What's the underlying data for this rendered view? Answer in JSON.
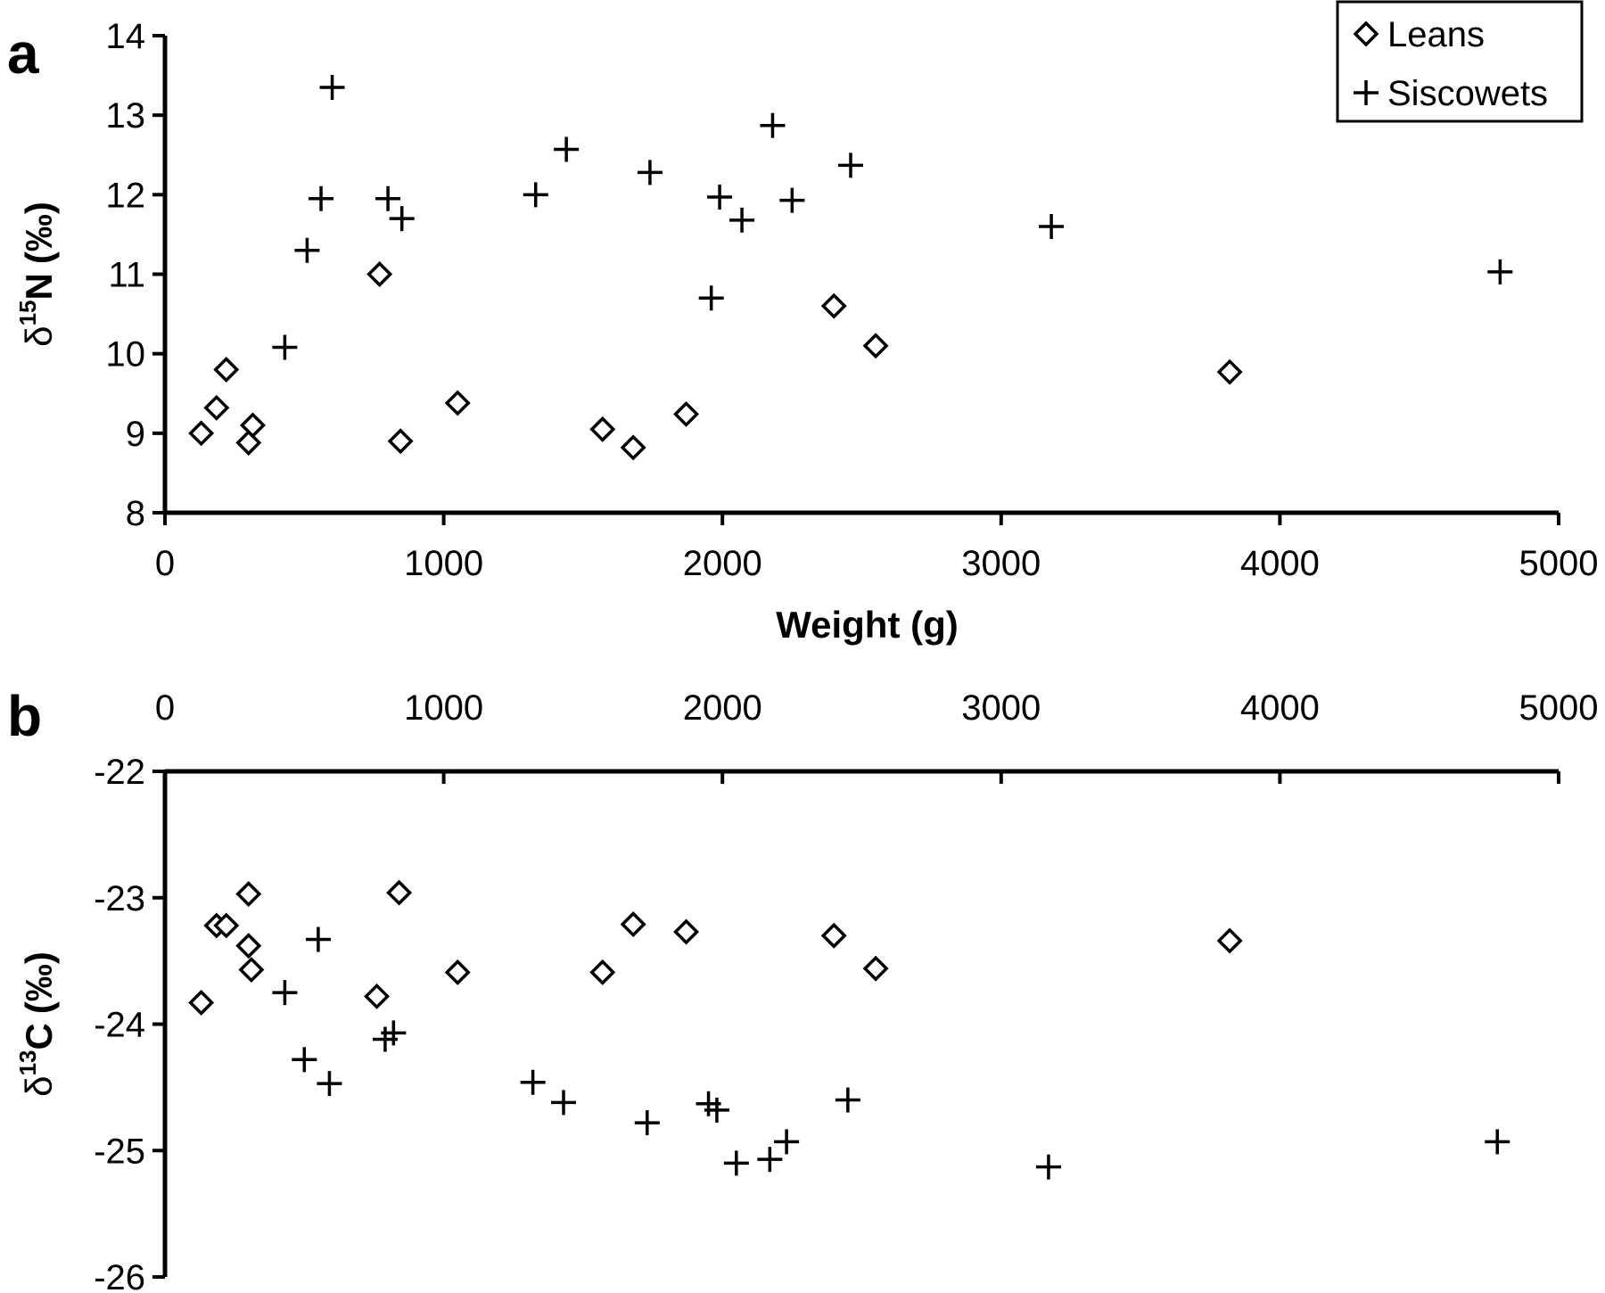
{
  "chart_data": [
    {
      "type": "scatter",
      "panel_label": "a",
      "xlabel": "Weight (g)",
      "ylabel": {
        "prefix": "δ",
        "superscript": "15",
        "element": "N",
        "unit": "(‰)"
      },
      "xlim": [
        0,
        5000
      ],
      "ylim": [
        8,
        14
      ],
      "x_ticks": [
        "0",
        "1000",
        "2000",
        "3000",
        "4000",
        "5000"
      ],
      "y_ticks": [
        "8",
        "9",
        "10",
        "11",
        "12",
        "13",
        "14"
      ],
      "x_axis_position": "bottom",
      "grid": false,
      "legend": {
        "placement": "top-right",
        "entries": [
          {
            "marker": "diamond",
            "label": "Leans"
          },
          {
            "marker": "plus",
            "label": "Siscowets"
          }
        ]
      },
      "series": [
        {
          "name": "Leans",
          "marker": "diamond",
          "points": [
            [
              130,
              9.0
            ],
            [
              185,
              9.32
            ],
            [
              220,
              9.8
            ],
            [
              300,
              8.88
            ],
            [
              315,
              9.1
            ],
            [
              770,
              11.0
            ],
            [
              845,
              8.9
            ],
            [
              1050,
              9.38
            ],
            [
              1570,
              9.05
            ],
            [
              1680,
              8.82
            ],
            [
              1870,
              9.24
            ],
            [
              2400,
              10.6
            ],
            [
              2550,
              10.1
            ],
            [
              3820,
              9.77
            ]
          ]
        },
        {
          "name": "Siscowets",
          "marker": "plus",
          "points": [
            [
              430,
              10.08
            ],
            [
              510,
              11.3
            ],
            [
              560,
              11.95
            ],
            [
              600,
              13.35
            ],
            [
              800,
              11.95
            ],
            [
              850,
              11.7
            ],
            [
              1330,
              12.0
            ],
            [
              1440,
              12.57
            ],
            [
              1740,
              12.28
            ],
            [
              1960,
              10.7
            ],
            [
              1990,
              11.97
            ],
            [
              2070,
              11.68
            ],
            [
              2180,
              12.87
            ],
            [
              2250,
              11.93
            ],
            [
              2460,
              12.37
            ],
            [
              3180,
              11.6
            ],
            [
              4790,
              11.03
            ]
          ]
        }
      ]
    },
    {
      "type": "scatter",
      "panel_label": "b",
      "xlabel": "",
      "ylabel": {
        "prefix": "δ",
        "superscript": "13",
        "element": "C",
        "unit": "(‰)"
      },
      "xlim": [
        0,
        5000
      ],
      "ylim": [
        -26,
        -22
      ],
      "x_ticks": [
        "0",
        "1000",
        "2000",
        "3000",
        "4000",
        "5000"
      ],
      "y_ticks": [
        "-26",
        "-25",
        "-24",
        "-23",
        "-22"
      ],
      "x_axis_position": "top",
      "grid": false,
      "series": [
        {
          "name": "Leans",
          "marker": "diamond",
          "points": [
            [
              130,
              -23.83
            ],
            [
              185,
              -23.22
            ],
            [
              220,
              -23.22
            ],
            [
              300,
              -22.97
            ],
            [
              300,
              -23.38
            ],
            [
              310,
              -23.57
            ],
            [
              760,
              -23.78
            ],
            [
              840,
              -22.96
            ],
            [
              1050,
              -23.59
            ],
            [
              1570,
              -23.59
            ],
            [
              1680,
              -23.21
            ],
            [
              1870,
              -23.27
            ],
            [
              2400,
              -23.3
            ],
            [
              2550,
              -23.56
            ],
            [
              3820,
              -23.34
            ]
          ]
        },
        {
          "name": "Siscowets",
          "marker": "plus",
          "points": [
            [
              430,
              -23.75
            ],
            [
              500,
              -24.28
            ],
            [
              550,
              -23.33
            ],
            [
              590,
              -24.47
            ],
            [
              790,
              -24.12
            ],
            [
              820,
              -24.07
            ],
            [
              1320,
              -24.46
            ],
            [
              1430,
              -24.62
            ],
            [
              1730,
              -24.78
            ],
            [
              1950,
              -24.63
            ],
            [
              1980,
              -24.68
            ],
            [
              2050,
              -25.1
            ],
            [
              2170,
              -25.07
            ],
            [
              2230,
              -24.93
            ],
            [
              2450,
              -24.6
            ],
            [
              3170,
              -25.13
            ],
            [
              4780,
              -24.93
            ]
          ]
        }
      ]
    }
  ]
}
